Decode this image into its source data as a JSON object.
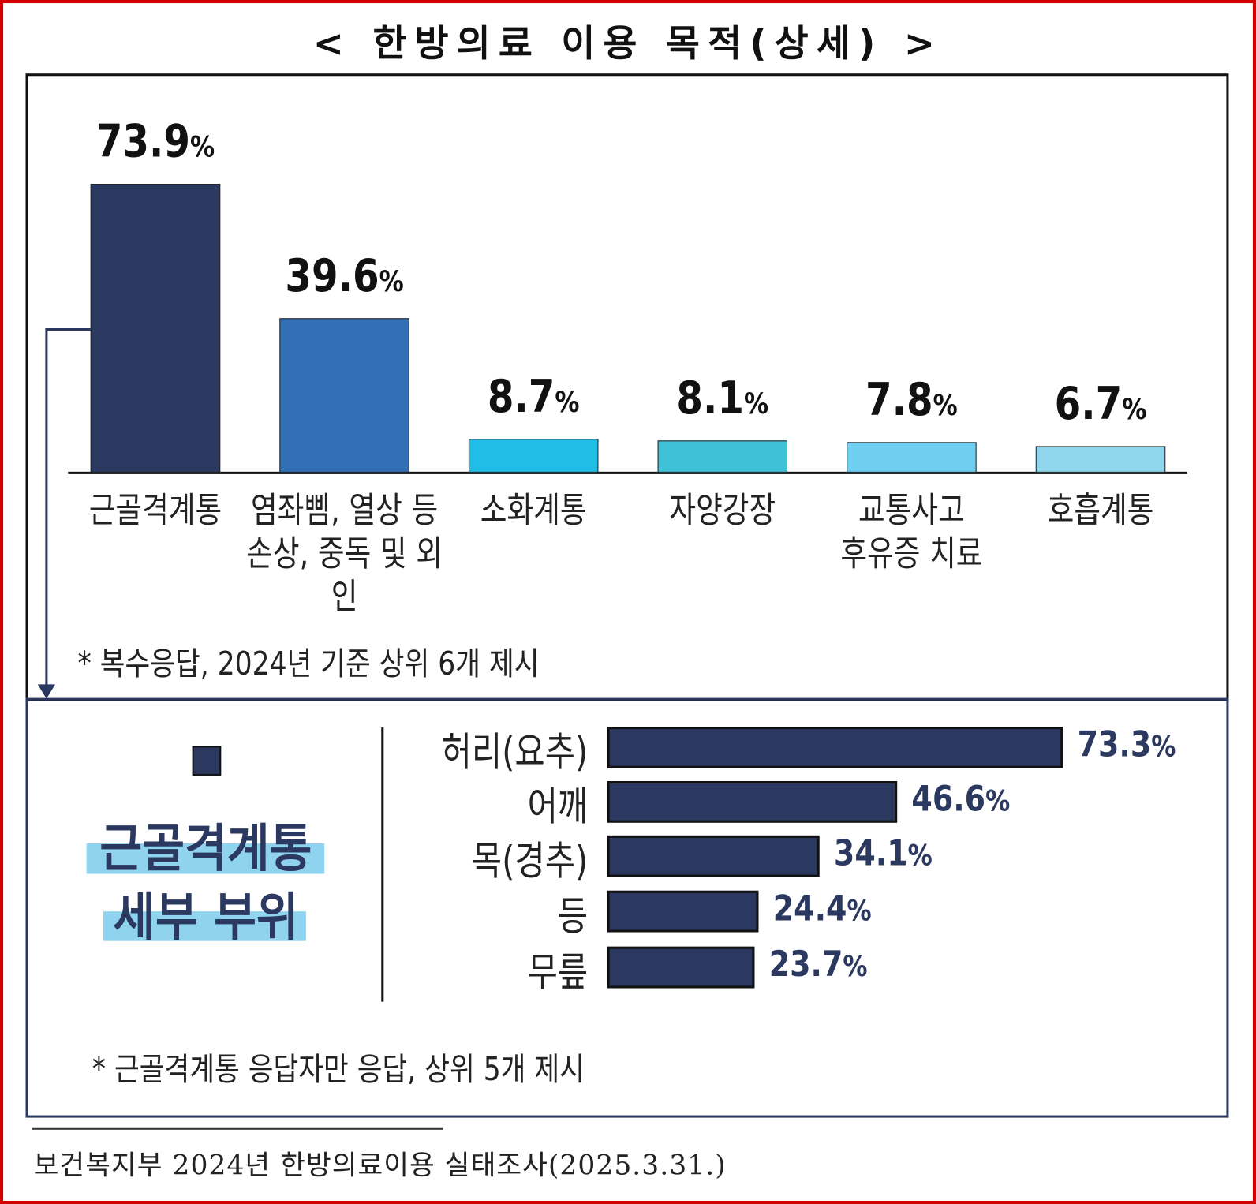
{
  "title": "< 한방의료 이용 목적(상세) >",
  "chart_data": [
    {
      "type": "bar",
      "orientation": "vertical",
      "categories": [
        [
          "근골격계통"
        ],
        [
          "염좌삠, 열상 등",
          "손상, 중독 및 외인"
        ],
        [
          "소화계통"
        ],
        [
          "자양강장"
        ],
        [
          "교통사고",
          "후유증 치료"
        ],
        [
          "호흡계통"
        ]
      ],
      "values": [
        73.9,
        39.6,
        8.7,
        8.1,
        7.8,
        6.7
      ],
      "unit": "%",
      "colors": [
        "#2b3960",
        "#336fb5",
        "#22bde6",
        "#3fc1d6",
        "#6fcff0",
        "#8fd6ec"
      ],
      "note": "* 복수응답, 2024년 기준 상위 6개 제시"
    },
    {
      "type": "bar",
      "orientation": "horizontal",
      "title_lines": [
        "근골격계통",
        "세부 부위"
      ],
      "categories": [
        "허리(요추)",
        "어깨",
        "목(경추)",
        "등",
        "무릎"
      ],
      "values": [
        73.3,
        46.6,
        34.1,
        24.4,
        23.7
      ],
      "unit": "%",
      "color": "#2b3960",
      "note": "* 근골격계통 응답자만 응답, 상위 5개 제시"
    }
  ],
  "source": "보건복지부 2024년 한방의료이용 실태조사(2025.3.31.)"
}
